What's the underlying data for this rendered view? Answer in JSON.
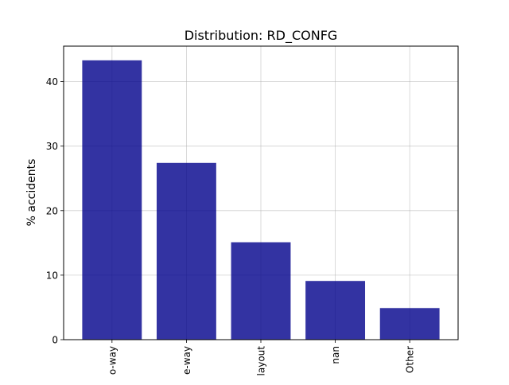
{
  "chart_data": {
    "type": "bar",
    "title": "Distribution: RD_CONFG",
    "xlabel": "",
    "ylabel": "% accidents",
    "categories": [
      "o-way",
      "e-way",
      "layout",
      "nan",
      "Other"
    ],
    "values": [
      43.3,
      27.4,
      15.1,
      9.1,
      4.9
    ],
    "ylim": [
      0,
      45.5
    ],
    "yticks": [
      0,
      10,
      20,
      30,
      40
    ],
    "grid": true,
    "bar_color": "#00008b",
    "bar_opacity": 0.8,
    "grid_color": "#b0b0b0"
  }
}
